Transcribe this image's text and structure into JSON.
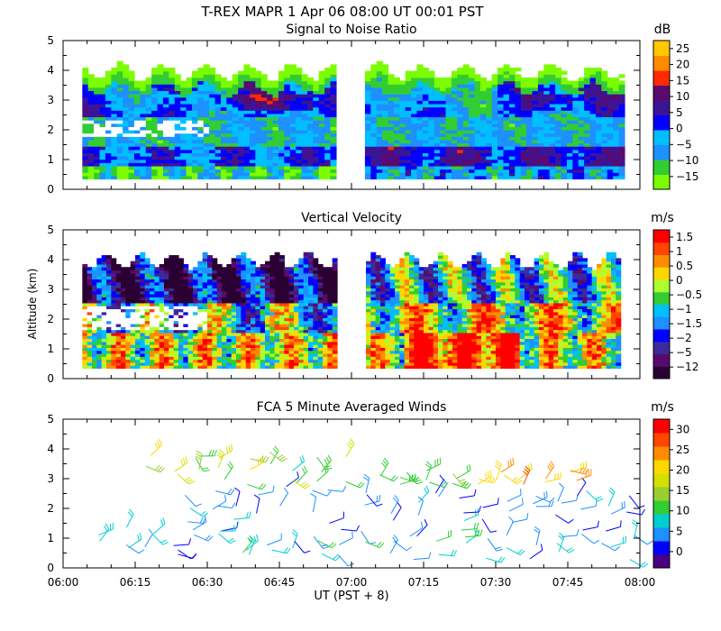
{
  "header": {
    "title": "T-REX  MAPR   1 Apr 06   08:00 UT   00:01   PST"
  },
  "x_axis": {
    "label": "UT  (PST + 8)",
    "tick_labels": [
      "06:00",
      "06:15",
      "06:30",
      "06:45",
      "07:00",
      "07:15",
      "07:30",
      "07:45",
      "08:00"
    ],
    "range_minutes": [
      0,
      120
    ]
  },
  "y_axis": {
    "label": "Altitude (km)",
    "tick_labels": [
      "0",
      "1",
      "2",
      "3",
      "4",
      "5"
    ],
    "range_km": [
      0,
      5
    ]
  },
  "chart_data": [
    {
      "type": "heatmap",
      "title": "Signal to Noise Ratio",
      "units": "dB",
      "colorbar_labels": [
        "25",
        "20",
        "15",
        "10",
        "5",
        "0",
        "−5",
        "−10",
        "−15"
      ],
      "colorbar_range": [
        -17,
        28
      ],
      "colors": [
        "#7cfc00",
        "#32cd32",
        "#1e90ff",
        "#00bfff",
        "#0000ff",
        "#3c1496",
        "#5a0a6e",
        "#ff2a00",
        "#ff8c00",
        "#ffc800"
      ],
      "data_gap_minutes": [
        57.5,
        62.5
      ],
      "data_extent_minutes": [
        4,
        116
      ],
      "layers": [
        {
          "band_km": [
            0.4,
            0.9
          ],
          "value_db": -14
        },
        {
          "band_km": [
            0.7,
            1.4
          ],
          "value_db": 3
        },
        {
          "band_km": [
            1.4,
            2.4
          ],
          "value_db": -9
        },
        {
          "band_km": [
            2.4,
            3.6
          ],
          "value_db": 2
        },
        {
          "band_km": [
            3.6,
            4.2
          ],
          "value_db": -13
        }
      ]
    },
    {
      "type": "heatmap",
      "title": "Vertical Velocity",
      "units": "m/s",
      "colorbar_labels": [
        "1.5",
        "1",
        "0.5",
        "0",
        "−0.5",
        "−1",
        "−1.5",
        "−2",
        "−5",
        "−12"
      ],
      "colors": [
        "#2a0033",
        "#5a0a6e",
        "#3a2a9a",
        "#0000ff",
        "#1e90ff",
        "#00bfff",
        "#32cd32",
        "#adff2f",
        "#ffd700",
        "#ff8c00",
        "#ff4500",
        "#ff0000"
      ],
      "data_gap_minutes": [
        57.5,
        62.5
      ],
      "data_extent_minutes": [
        4,
        116
      ],
      "layers": [
        {
          "band_km": [
            0.4,
            1.5
          ],
          "value_ms": 1.0
        },
        {
          "band_km": [
            1.5,
            2.5
          ],
          "value_ms": -1.0
        },
        {
          "band_km": [
            2.5,
            4.1
          ],
          "value_ms": -5.0
        }
      ]
    },
    {
      "type": "scatter",
      "title": "FCA 5 Minute Averaged Winds",
      "units": "m/s",
      "colorbar_labels": [
        "30",
        "25",
        "20",
        "15",
        "10",
        "5",
        "0"
      ],
      "colorbar_range": [
        0,
        31
      ],
      "colors": [
        "#4b0082",
        "#0000ff",
        "#1e90ff",
        "#00ced1",
        "#32cd32",
        "#9acd32",
        "#d4e000",
        "#ffd700",
        "#ff8c00",
        "#ff4500",
        "#ff0000"
      ],
      "barb_groups": [
        {
          "time_min": [
            7,
            57
          ],
          "alt_km": [
            0.4,
            1.4
          ],
          "speed_ms": [
            4,
            12
          ]
        },
        {
          "time_min": [
            25,
            57
          ],
          "alt_km": [
            1.5,
            2.8
          ],
          "speed_ms": [
            2,
            9
          ]
        },
        {
          "time_min": [
            17,
            57
          ],
          "alt_km": [
            2.8,
            3.9
          ],
          "speed_ms": [
            10,
            20
          ]
        },
        {
          "time_min": [
            62,
            118
          ],
          "alt_km": [
            0.2,
            1.3
          ],
          "speed_ms": [
            4,
            14
          ]
        },
        {
          "time_min": [
            62,
            118
          ],
          "alt_km": [
            1.5,
            2.6
          ],
          "speed_ms": [
            3,
            9
          ]
        },
        {
          "time_min": [
            65,
            80
          ],
          "alt_km": [
            2.8,
            3.3
          ],
          "speed_ms": [
            10,
            15
          ]
        },
        {
          "time_min": [
            85,
            105
          ],
          "alt_km": [
            2.8,
            3.3
          ],
          "speed_ms": [
            17,
            26
          ]
        }
      ]
    }
  ]
}
